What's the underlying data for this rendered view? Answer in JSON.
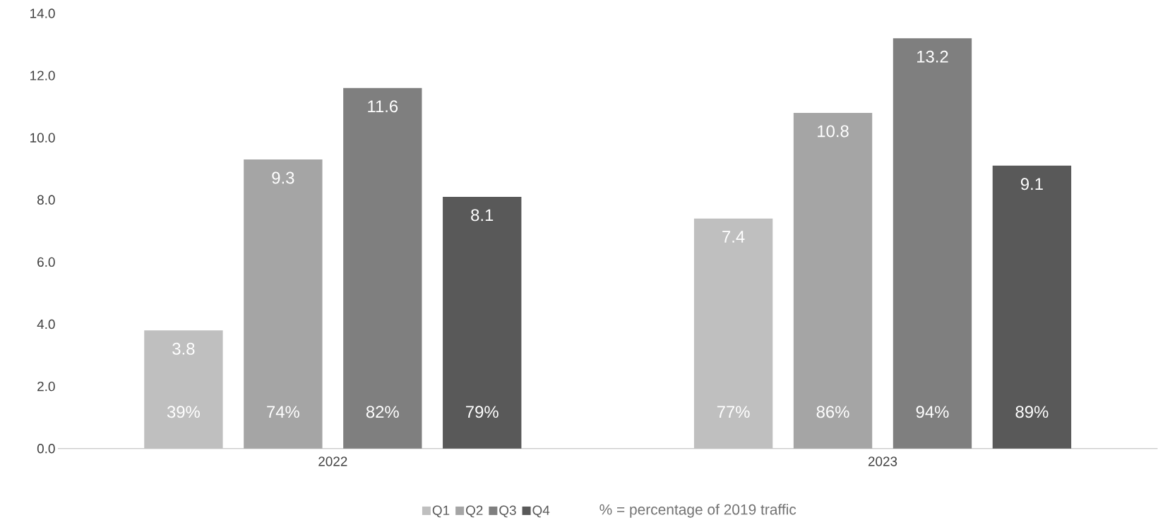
{
  "chart_data": {
    "type": "bar",
    "categories": [
      "2022",
      "2023"
    ],
    "series": [
      {
        "name": "Q1",
        "color": "#bfbfbf",
        "values": [
          3.8,
          7.4
        ]
      },
      {
        "name": "Q2",
        "color": "#a5a5a5",
        "values": [
          9.3,
          10.8
        ]
      },
      {
        "name": "Q3",
        "color": "#7f7f7f",
        "values": [
          11.6,
          13.2
        ]
      },
      {
        "name": "Q4",
        "color": "#595959",
        "values": [
          8.1,
          9.1
        ]
      }
    ],
    "ylim": [
      0,
      14
    ],
    "yticks": [
      {
        "value": 0,
        "label": "0.0"
      },
      {
        "value": 2,
        "label": "2.0"
      },
      {
        "value": 4,
        "label": "4.0"
      },
      {
        "value": 6,
        "label": "6.0"
      },
      {
        "value": 8,
        "label": "8.0"
      },
      {
        "value": 10,
        "label": "10.0"
      },
      {
        "value": 12,
        "label": "12.0"
      },
      {
        "value": 14,
        "label": "14.0"
      }
    ],
    "data_labels": true,
    "legend": "bottom",
    "annotations": [
      "39%",
      "74%",
      "82%",
      "79%",
      "77%",
      "86%",
      "94%",
      "89%",
      "% = percentage  of 2019 traffic"
    ]
  }
}
